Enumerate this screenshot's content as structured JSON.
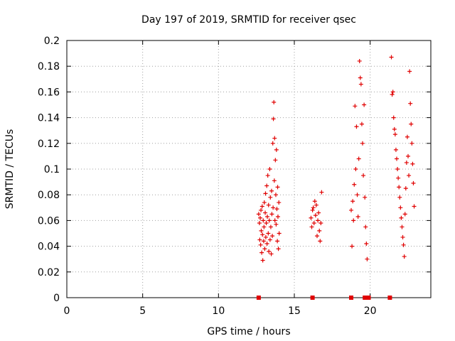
{
  "chart_data": {
    "type": "scatter",
    "title": "Day 197 of 2019, SRMTID for receiver qsec",
    "xlabel": "GPS time / hours",
    "ylabel": "SRMTID / TECUs",
    "xlim": [
      0,
      24
    ],
    "ylim": [
      0,
      0.2
    ],
    "xticks": [
      0,
      5,
      10,
      15,
      20
    ],
    "xtick_labels": [
      "0",
      "5",
      "10",
      "15",
      "20"
    ],
    "yticks": [
      0,
      0.02,
      0.04,
      0.06,
      0.08,
      0.1,
      0.12,
      0.14,
      0.16,
      0.18,
      0.2
    ],
    "ytick_labels": [
      "0",
      "0.02",
      "0.04",
      "0.06",
      "0.08",
      "0.1",
      "0.12",
      "0.14",
      "0.16",
      "0.18",
      "0.2"
    ],
    "grid": true,
    "series": [
      {
        "name": "SRMTID",
        "marker": "plus",
        "color": "#e00000",
        "points": [
          [
            12.65,
            0.065
          ],
          [
            12.7,
            0.058
          ],
          [
            12.72,
            0.045
          ],
          [
            12.75,
            0.062
          ],
          [
            12.78,
            0.041
          ],
          [
            12.8,
            0.068
          ],
          [
            12.82,
            0.052
          ],
          [
            12.85,
            0.035
          ],
          [
            12.88,
            0.071
          ],
          [
            12.9,
            0.049
          ],
          [
            12.92,
            0.029
          ],
          [
            12.95,
            0.06
          ],
          [
            12.98,
            0.044
          ],
          [
            13.0,
            0.055
          ],
          [
            13.02,
            0.074
          ],
          [
            13.05,
            0.038
          ],
          [
            13.08,
            0.066
          ],
          [
            13.1,
            0.081
          ],
          [
            13.12,
            0.047
          ],
          [
            13.15,
            0.058
          ],
          [
            13.18,
            0.087
          ],
          [
            13.2,
            0.042
          ],
          [
            13.22,
            0.063
          ],
          [
            13.25,
            0.095
          ],
          [
            13.28,
            0.05
          ],
          [
            13.3,
            0.072
          ],
          [
            13.32,
            0.036
          ],
          [
            13.35,
            0.06
          ],
          [
            13.38,
            0.1
          ],
          [
            13.4,
            0.045
          ],
          [
            13.42,
            0.078
          ],
          [
            13.45,
            0.055
          ],
          [
            13.48,
            0.034
          ],
          [
            13.5,
            0.083
          ],
          [
            13.52,
            0.065
          ],
          [
            13.55,
            0.048
          ],
          [
            13.58,
            0.12
          ],
          [
            13.6,
            0.07
          ],
          [
            13.62,
            0.139
          ],
          [
            13.65,
            0.152
          ],
          [
            13.68,
            0.091
          ],
          [
            13.7,
            0.124
          ],
          [
            13.72,
            0.06
          ],
          [
            13.75,
            0.107
          ],
          [
            13.78,
            0.08
          ],
          [
            13.8,
            0.057
          ],
          [
            13.82,
            0.115
          ],
          [
            13.85,
            0.069
          ],
          [
            13.88,
            0.044
          ],
          [
            13.9,
            0.086
          ],
          [
            13.92,
            0.063
          ],
          [
            13.95,
            0.038
          ],
          [
            13.98,
            0.074
          ],
          [
            14.0,
            0.05
          ],
          [
            16.1,
            0.062
          ],
          [
            16.15,
            0.055
          ],
          [
            16.2,
            0.068
          ],
          [
            16.25,
            0.07
          ],
          [
            16.3,
            0.058
          ],
          [
            16.35,
            0.075
          ],
          [
            16.4,
            0.064
          ],
          [
            16.45,
            0.072
          ],
          [
            16.5,
            0.048
          ],
          [
            16.55,
            0.06
          ],
          [
            16.6,
            0.066
          ],
          [
            16.65,
            0.052
          ],
          [
            16.7,
            0.044
          ],
          [
            16.75,
            0.058
          ],
          [
            16.8,
            0.082
          ],
          [
            18.75,
            0.068
          ],
          [
            18.8,
            0.04
          ],
          [
            18.85,
            0.075
          ],
          [
            18.9,
            0.06
          ],
          [
            18.95,
            0.088
          ],
          [
            19.0,
            0.149
          ],
          [
            19.05,
            0.1
          ],
          [
            19.1,
            0.133
          ],
          [
            19.15,
            0.08
          ],
          [
            19.2,
            0.063
          ],
          [
            19.25,
            0.108
          ],
          [
            19.3,
            0.184
          ],
          [
            19.35,
            0.171
          ],
          [
            19.4,
            0.166
          ],
          [
            19.45,
            0.135
          ],
          [
            19.5,
            0.12
          ],
          [
            19.55,
            0.095
          ],
          [
            19.6,
            0.15
          ],
          [
            19.65,
            0.078
          ],
          [
            19.7,
            0.055
          ],
          [
            19.75,
            0.042
          ],
          [
            19.8,
            0.03
          ],
          [
            21.4,
            0.187
          ],
          [
            21.45,
            0.158
          ],
          [
            21.5,
            0.16
          ],
          [
            21.55,
            0.14
          ],
          [
            21.6,
            0.131
          ],
          [
            21.65,
            0.127
          ],
          [
            21.7,
            0.115
          ],
          [
            21.75,
            0.108
          ],
          [
            21.8,
            0.1
          ],
          [
            21.85,
            0.093
          ],
          [
            21.9,
            0.086
          ],
          [
            21.95,
            0.078
          ],
          [
            22.0,
            0.07
          ],
          [
            22.05,
            0.062
          ],
          [
            22.1,
            0.055
          ],
          [
            22.15,
            0.047
          ],
          [
            22.2,
            0.041
          ],
          [
            22.25,
            0.032
          ],
          [
            22.3,
            0.065
          ],
          [
            22.35,
            0.085
          ],
          [
            22.4,
            0.105
          ],
          [
            22.45,
            0.125
          ],
          [
            22.5,
            0.11
          ],
          [
            22.55,
            0.095
          ],
          [
            22.6,
            0.176
          ],
          [
            22.65,
            0.151
          ],
          [
            22.7,
            0.135
          ],
          [
            22.75,
            0.12
          ],
          [
            22.8,
            0.104
          ],
          [
            22.85,
            0.089
          ],
          [
            22.9,
            0.071
          ]
        ]
      }
    ],
    "baseline_marks": [
      12.65,
      16.2,
      18.75,
      19.65,
      19.9,
      21.3
    ]
  }
}
